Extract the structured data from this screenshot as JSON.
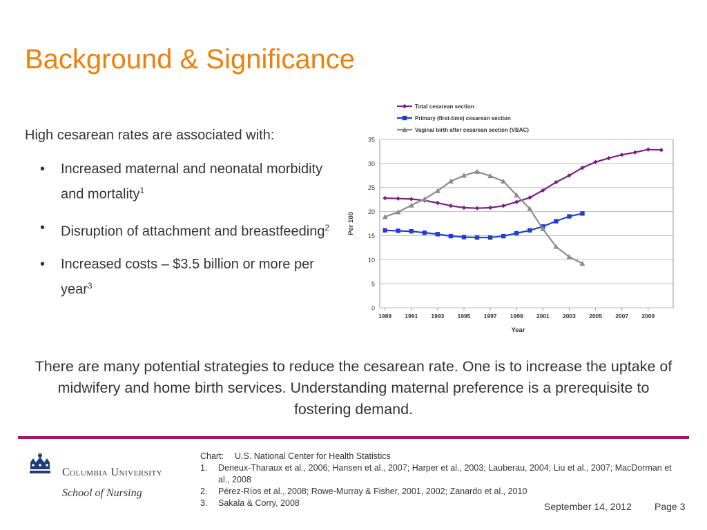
{
  "slide": {
    "title": "Background & Significance",
    "intro": "High cesarean rates are associated with:",
    "bullets": [
      {
        "text": "Increased maternal and neonatal morbidity and mortality",
        "sup": "1"
      },
      {
        "text": "Disruption of attachment and breastfeeding",
        "sup": "2"
      },
      {
        "text": "Increased costs – $3.5 billion or more per year",
        "sup": "3"
      }
    ],
    "bullet_glyph": "•",
    "paragraph": "There are many potential strategies to reduce the cesarean rate.  One is to increase the uptake of midwifery and home birth services.  Understanding maternal preference is a prerequisite to fostering demand.",
    "colors": {
      "title": "#F07F09",
      "rule": "#A8166E",
      "logo": "#1F3B7A"
    }
  },
  "footer": {
    "university": "Columbia University",
    "school": "School of Nursing",
    "refs": [
      {
        "num": "Chart:",
        "text": "U.S. National Center for Health Statistics"
      },
      {
        "num": "1.",
        "text": "Deneux-Tharaux et al., 2006; Hansen et al., 2007; Harper et al., 2003; Lauberau, 2004; Liu et al., 2007; MacDorman et al., 2008"
      },
      {
        "num": "2.",
        "text": "Pérez-Ríos et al., 2008; Rowe-Murray & Fisher, 2001, 2002; Zanardo et al., 2010"
      },
      {
        "num": "3.",
        "text": "Sakala & Corry, 2008"
      }
    ],
    "date": "September 14, 2012",
    "page": "Page 3"
  },
  "chart_data": {
    "type": "line",
    "title": "",
    "xlabel": "Year",
    "ylabel": "Per 100",
    "ylim": [
      0,
      35
    ],
    "xlim": [
      1988.6,
      2010.9
    ],
    "yticks": [
      0,
      5,
      10,
      15,
      20,
      25,
      30,
      35
    ],
    "xticks": [
      "1989",
      "1991",
      "1993",
      "1995",
      "1997",
      "1999",
      "2001",
      "2003",
      "2005",
      "2007",
      "2009"
    ],
    "grid": true,
    "legend_position": "top-left",
    "series": [
      {
        "name": "Total cesarean section",
        "color": "#7B1F83",
        "marker": "diamond",
        "x": [
          1989,
          1990,
          1991,
          1992,
          1993,
          1994,
          1995,
          1996,
          1997,
          1998,
          1999,
          2000,
          2001,
          2002,
          2003,
          2004,
          2005,
          2006,
          2007,
          2008,
          2009,
          2010
        ],
        "y": [
          22.8,
          22.7,
          22.6,
          22.3,
          21.8,
          21.2,
          20.8,
          20.7,
          20.8,
          21.2,
          22.0,
          22.9,
          24.4,
          26.1,
          27.5,
          29.1,
          30.3,
          31.1,
          31.8,
          32.3,
          32.9,
          32.8
        ]
      },
      {
        "name": "Primary (first-time) cesarean section",
        "color": "#1F3FD1",
        "marker": "square",
        "x": [
          1989,
          1990,
          1991,
          1992,
          1993,
          1994,
          1995,
          1996,
          1997,
          1998,
          1999,
          2000,
          2001,
          2002,
          2003,
          2004
        ],
        "y": [
          16.1,
          16.0,
          15.9,
          15.6,
          15.3,
          14.9,
          14.7,
          14.6,
          14.6,
          14.9,
          15.5,
          16.1,
          16.9,
          18.0,
          19.0,
          19.6
        ]
      },
      {
        "name": "Vaginal birth after cesarean section (VBAC)",
        "color": "#8C8C8C",
        "marker": "triangle",
        "x": [
          1989,
          1990,
          1991,
          1992,
          1993,
          1994,
          1995,
          1996,
          1997,
          1998,
          1999,
          2000,
          2001,
          2002,
          2003,
          2004
        ],
        "y": [
          18.9,
          19.9,
          21.3,
          22.6,
          24.3,
          26.3,
          27.5,
          28.3,
          27.4,
          26.3,
          23.4,
          20.6,
          16.4,
          12.7,
          10.6,
          9.2
        ]
      }
    ]
  }
}
